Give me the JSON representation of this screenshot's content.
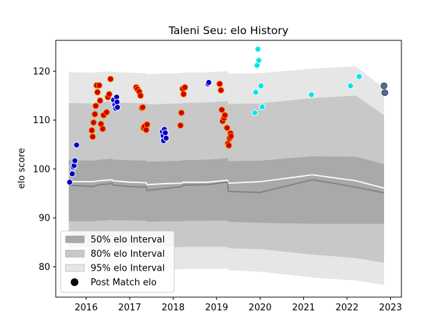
{
  "chart_data": {
    "type": "scatter",
    "title": "Taleni Seu: elo History",
    "xlabel": "",
    "ylabel": "elo score",
    "xlim": [
      2015.3,
      2023.25
    ],
    "ylim": [
      73.8,
      126.3
    ],
    "xticks": [
      2016,
      2017,
      2018,
      2019,
      2020,
      2021,
      2022,
      2023
    ],
    "yticks": [
      80,
      90,
      100,
      110,
      120
    ],
    "grid": false,
    "legend_position": "lower-left",
    "legend": [
      {
        "label": "50% elo Interval",
        "kind": "band",
        "color": "#a9a9a9"
      },
      {
        "label": "80% elo Interval",
        "kind": "band",
        "color": "#c8c8c8"
      },
      {
        "label": "95% elo Interval",
        "kind": "band",
        "color": "#e6e6e6"
      },
      {
        "label": "Post Match elo",
        "kind": "marker",
        "color": "#000000"
      }
    ],
    "bands": {
      "x": [
        2015.6,
        2016.15,
        2016.3,
        2016.6,
        2016.62,
        2017.0,
        2017.38,
        2017.4,
        2017.8,
        2018.2,
        2018.22,
        2018.8,
        2019.25,
        2019.27,
        2020.0,
        2021.2,
        2022.2,
        2022.85
      ],
      "p95_low": [
        79.5,
        79.5,
        79.6,
        79.7,
        79.6,
        79.7,
        79.6,
        79.5,
        79.5,
        79.5,
        79.6,
        79.6,
        79.6,
        79.3,
        79.0,
        77.8,
        77.2,
        76.3
      ],
      "p95_high": [
        119.8,
        119.7,
        119.8,
        120.0,
        119.8,
        119.7,
        119.6,
        119.4,
        119.5,
        119.6,
        119.7,
        119.8,
        120.0,
        119.5,
        119.6,
        120.5,
        121.0,
        116.5
      ],
      "p80_low": [
        84.0,
        84.0,
        84.1,
        84.3,
        84.2,
        84.2,
        84.1,
        84.0,
        84.0,
        84.0,
        84.1,
        84.1,
        84.1,
        83.8,
        83.6,
        82.5,
        81.8,
        80.8
      ],
      "p80_high": [
        113.5,
        113.4,
        113.6,
        113.8,
        113.6,
        113.5,
        113.4,
        113.2,
        113.3,
        113.4,
        113.5,
        113.6,
        113.9,
        113.3,
        113.4,
        114.5,
        115.0,
        111.0
      ],
      "p50_low": [
        89.3,
        89.3,
        89.4,
        89.6,
        89.5,
        89.5,
        89.4,
        89.2,
        89.3,
        89.3,
        89.4,
        89.4,
        89.5,
        89.2,
        89.0,
        88.8,
        88.8,
        88.8
      ],
      "p50_high": [
        101.8,
        101.7,
        101.9,
        102.1,
        101.9,
        101.8,
        101.7,
        101.5,
        101.6,
        101.7,
        101.8,
        101.9,
        102.2,
        101.6,
        101.7,
        102.6,
        102.5,
        101.0
      ]
    },
    "lines": [
      {
        "role": "expected",
        "color": "#ffffff",
        "x": [
          2015.6,
          2016.15,
          2016.3,
          2016.6,
          2016.62,
          2017.0,
          2017.38,
          2017.4,
          2017.8,
          2018.2,
          2018.22,
          2018.8,
          2019.25,
          2019.27,
          2020.0,
          2021.2,
          2022.2,
          2022.85
        ],
        "y": [
          97.4,
          97.4,
          97.6,
          97.8,
          97.6,
          97.3,
          97.2,
          96.8,
          97.0,
          97.1,
          97.3,
          97.3,
          97.7,
          97.1,
          97.4,
          98.8,
          97.6,
          96.1
        ]
      },
      {
        "role": "median",
        "color": "#808080",
        "x": [
          2015.6,
          2016.15,
          2016.3,
          2016.6,
          2016.62,
          2017.0,
          2017.38,
          2017.4,
          2017.8,
          2018.2,
          2018.22,
          2018.8,
          2019.25,
          2019.27,
          2020.0,
          2021.2,
          2022.2,
          2022.85
        ],
        "y": [
          96.7,
          96.4,
          96.8,
          97.0,
          96.7,
          96.4,
          96.3,
          95.6,
          96.0,
          96.4,
          96.7,
          96.8,
          97.3,
          95.4,
          95.2,
          97.8,
          96.3,
          95.1
        ]
      }
    ],
    "series": [
      {
        "color": "#0000cc",
        "points": [
          [
            2015.62,
            97.3
          ],
          [
            2015.68,
            99.0
          ],
          [
            2015.7,
            100.4
          ],
          [
            2015.72,
            100.7
          ],
          [
            2015.74,
            101.7
          ],
          [
            2015.78,
            104.9
          ],
          [
            2016.63,
            114.1
          ],
          [
            2016.66,
            113.1
          ],
          [
            2016.68,
            112.4
          ],
          [
            2016.7,
            114.7
          ],
          [
            2016.71,
            113.7
          ],
          [
            2016.72,
            112.6
          ],
          [
            2017.75,
            107.6
          ],
          [
            2017.77,
            106.8
          ],
          [
            2017.78,
            105.8
          ],
          [
            2017.8,
            108.1
          ],
          [
            2017.82,
            107.4
          ],
          [
            2017.84,
            106.3
          ],
          [
            2018.8,
            117.4
          ],
          [
            2018.82,
            117.7
          ]
        ]
      },
      {
        "color": "#cc0000",
        "points": [
          [
            2016.13,
            107.9
          ],
          [
            2016.15,
            106.6
          ],
          [
            2016.17,
            109.5
          ],
          [
            2016.2,
            111.2
          ],
          [
            2016.22,
            112.9
          ],
          [
            2016.24,
            117.1
          ],
          [
            2016.26,
            115.7
          ],
          [
            2016.3,
            117.1
          ],
          [
            2016.32,
            114.0
          ],
          [
            2016.34,
            109.2
          ],
          [
            2016.38,
            108.2
          ],
          [
            2016.4,
            111.0
          ],
          [
            2016.47,
            111.6
          ],
          [
            2016.5,
            114.7
          ],
          [
            2016.53,
            115.3
          ],
          [
            2016.56,
            118.4
          ],
          [
            2017.15,
            116.7
          ],
          [
            2017.18,
            116.3
          ],
          [
            2017.22,
            115.8
          ],
          [
            2017.25,
            115.0
          ],
          [
            2017.28,
            112.5
          ],
          [
            2017.3,
            112.6
          ],
          [
            2017.32,
            108.4
          ],
          [
            2017.34,
            108.7
          ],
          [
            2017.38,
            108.0
          ],
          [
            2017.4,
            109.1
          ],
          [
            2018.17,
            108.9
          ],
          [
            2018.19,
            111.5
          ],
          [
            2018.22,
            116.4
          ],
          [
            2018.24,
            115.3
          ],
          [
            2018.27,
            116.7
          ],
          [
            2019.07,
            117.4
          ],
          [
            2019.1,
            116.1
          ],
          [
            2019.12,
            112.1
          ],
          [
            2019.14,
            109.8
          ],
          [
            2019.17,
            110.4
          ],
          [
            2019.19,
            111.0
          ],
          [
            2019.24,
            108.4
          ],
          [
            2019.26,
            105.2
          ],
          [
            2019.28,
            104.8
          ],
          [
            2019.3,
            106.3
          ],
          [
            2019.32,
            107.3
          ],
          [
            2019.33,
            106.7
          ]
        ]
      },
      {
        "color": "#00e5ee",
        "points": [
          [
            2019.88,
            111.5
          ],
          [
            2019.9,
            115.7
          ],
          [
            2019.93,
            121.2
          ],
          [
            2019.95,
            124.5
          ],
          [
            2019.97,
            122.2
          ],
          [
            2020.02,
            117.0
          ],
          [
            2020.05,
            112.7
          ],
          [
            2021.18,
            115.2
          ],
          [
            2022.08,
            117.0
          ],
          [
            2022.28,
            118.9
          ]
        ]
      },
      {
        "color": "#4a6fa5",
        "points": [
          [
            2022.85,
            117.0
          ],
          [
            2022.87,
            115.6
          ]
        ]
      }
    ]
  }
}
